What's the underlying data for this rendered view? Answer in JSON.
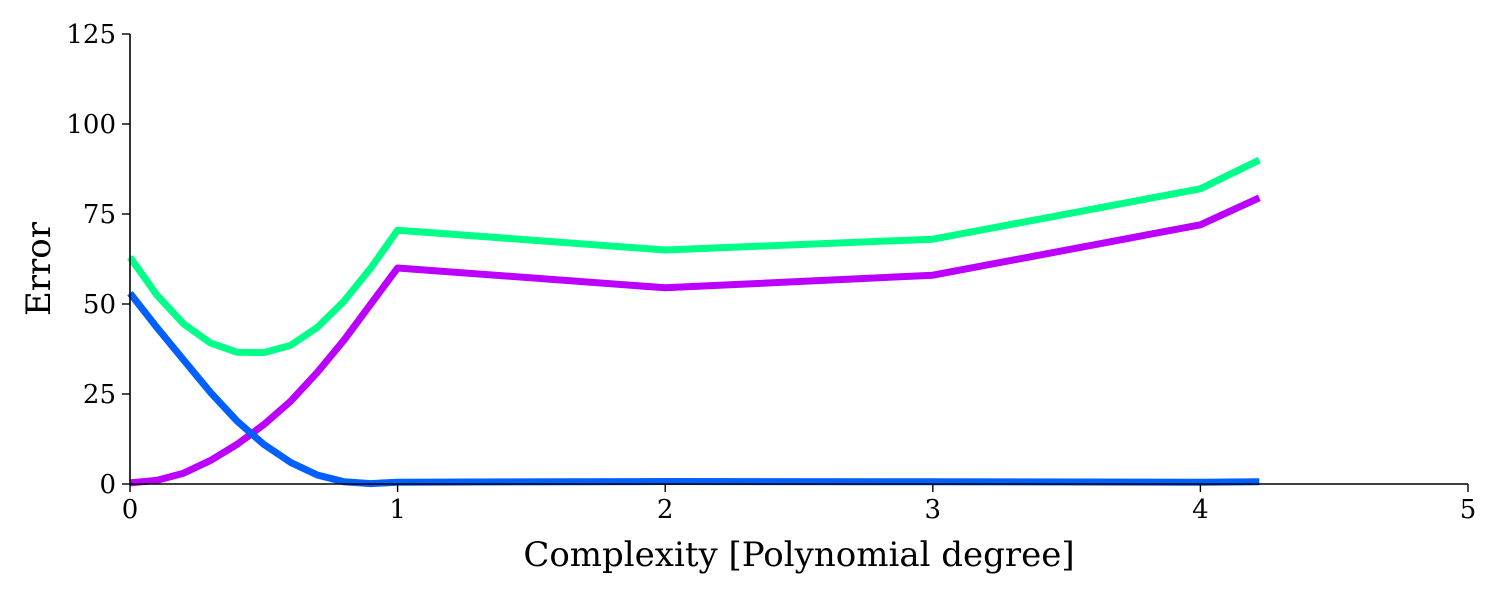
{
  "chart_data": {
    "type": "line",
    "title": "",
    "xlabel": "Complexity [Polynomial degree]",
    "ylabel": "Error",
    "xlim": [
      0,
      5
    ],
    "ylim": [
      0,
      125
    ],
    "xticks": [
      0,
      1,
      2,
      3,
      4,
      5
    ],
    "yticks": [
      0,
      25,
      50,
      75,
      100,
      125
    ],
    "grid": false,
    "legend": "none",
    "series": [
      {
        "color": "#00ff88",
        "points": [
          [
            0,
            63
          ],
          [
            0.1,
            52.5
          ],
          [
            0.2,
            44.5
          ],
          [
            0.3,
            39.2
          ],
          [
            0.4,
            36.6
          ],
          [
            0.5,
            36.5
          ],
          [
            0.6,
            38.5
          ],
          [
            0.7,
            43.5
          ],
          [
            0.8,
            50.8
          ],
          [
            0.9,
            60
          ],
          [
            1,
            70.5
          ],
          [
            2,
            65
          ],
          [
            3,
            68
          ],
          [
            4,
            82
          ],
          [
            4.22,
            90
          ]
        ]
      },
      {
        "color": "#bb00ff",
        "points": [
          [
            0,
            0.3
          ],
          [
            0.1,
            1
          ],
          [
            0.2,
            3
          ],
          [
            0.3,
            6.5
          ],
          [
            0.4,
            11
          ],
          [
            0.5,
            16.5
          ],
          [
            0.6,
            23
          ],
          [
            0.7,
            31
          ],
          [
            0.8,
            40
          ],
          [
            0.9,
            50
          ],
          [
            1,
            60
          ],
          [
            2,
            54.5
          ],
          [
            3,
            58
          ],
          [
            4,
            72
          ],
          [
            4.22,
            79.5
          ]
        ]
      },
      {
        "color": "#0060ff",
        "points": [
          [
            0,
            53
          ],
          [
            0.1,
            43.5
          ],
          [
            0.2,
            34.5
          ],
          [
            0.3,
            25.5
          ],
          [
            0.4,
            17.5
          ],
          [
            0.5,
            11
          ],
          [
            0.6,
            6
          ],
          [
            0.7,
            2.5
          ],
          [
            0.8,
            0.6
          ],
          [
            0.9,
            0.1
          ],
          [
            1,
            0.5
          ],
          [
            2,
            0.7
          ],
          [
            3,
            0.6
          ],
          [
            4,
            0.5
          ],
          [
            4.22,
            0.6
          ]
        ]
      }
    ]
  }
}
